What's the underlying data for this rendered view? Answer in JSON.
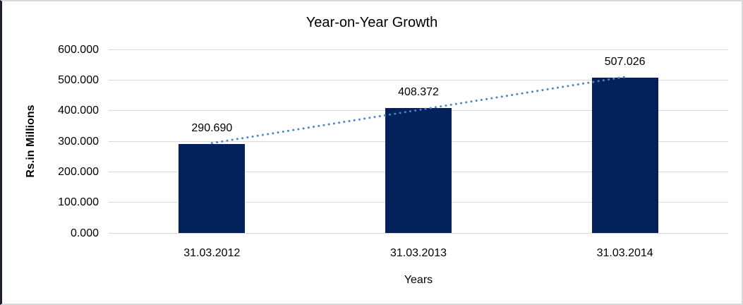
{
  "chart": {
    "title": "Year-on-Year Growth",
    "x_axis_title": "Years",
    "y_axis_title": "Rs.in Millions"
  },
  "chart_data": {
    "type": "bar",
    "title": "Year-on-Year Growth",
    "xlabel": "Years",
    "ylabel": "Rs.in Millions",
    "categories": [
      "31.03.2012",
      "31.03.2013",
      "31.03.2014"
    ],
    "values": [
      290.69,
      408.372,
      507.026
    ],
    "data_labels": [
      "290.690",
      "408.372",
      "507.026"
    ],
    "ylim": [
      0,
      600
    ],
    "yticks": [
      0,
      100,
      200,
      300,
      400,
      500,
      600
    ],
    "ytick_labels": [
      "0.000",
      "100.000",
      "200.000",
      "300.000",
      "400.000",
      "500.000",
      "600.000"
    ],
    "grid": true,
    "legend": false,
    "bar_color": "#03225C",
    "gridline_color": "#D9D9D9",
    "trendline": {
      "type": "linear",
      "style": "dotted",
      "color": "#4A86C8"
    }
  },
  "colors": {
    "frame_border": "#D9D9D9",
    "frame_left_edge": "#1B2030",
    "background": "#FFFFFF",
    "text": "#000000"
  }
}
